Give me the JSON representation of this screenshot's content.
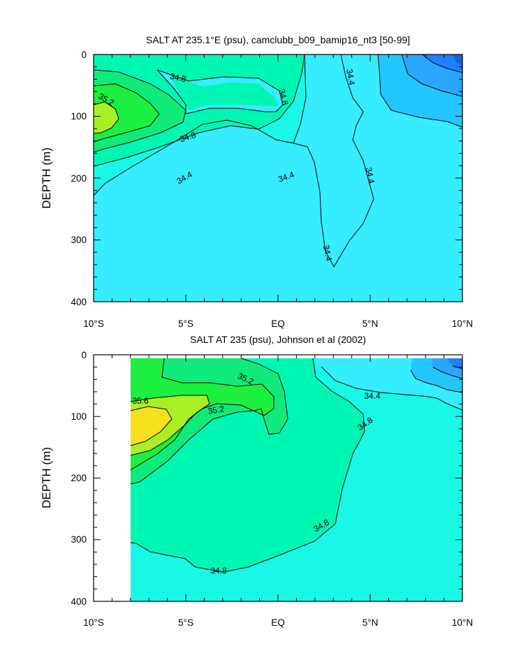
{
  "chart_data": [
    {
      "type": "contour",
      "title": "SALT AT 235.1°E (psu), camclubb_b09_bamip16_nt3 [50-99]",
      "ylabel": "DEPTH (m)",
      "xlim": [
        -10,
        10
      ],
      "ylim": [
        0,
        400
      ],
      "y_inverted": true,
      "x_ticks": [
        "10°S",
        "5°S",
        "EQ",
        "5°N",
        "10°N"
      ],
      "y_ticks": [
        "0",
        "100",
        "200",
        "300",
        "400"
      ],
      "contour_labels": [
        "34.8",
        "35.2",
        "34.8",
        "34.8",
        "34.4",
        "34.4",
        "34.4",
        "34.4",
        "34.4"
      ],
      "contour_levels": [
        34.0,
        34.2,
        34.4,
        34.6,
        34.8,
        35.0,
        35.2,
        35.4,
        35.6
      ],
      "colors": {
        "lt34.0": "#1f7fff",
        "34.0": "#2aa6ff",
        "34.2": "#22c7ff",
        "34.4": "#36ecff",
        "34.6": "#19f7e6",
        "34.8": "#00f7b3",
        "35.0": "#10ea7b",
        "35.2": "#1cef3f",
        "35.4": "#a9ef26",
        "gt35.6": "#f7e01d"
      }
    },
    {
      "type": "contour",
      "title": "SALT AT 235 (psu), Johnson et al (2002)",
      "ylabel": "DEPTH (m)",
      "xlim": [
        -10,
        10
      ],
      "ylim": [
        0,
        400
      ],
      "y_inverted": true,
      "data_x_start": -8,
      "x_ticks": [
        "10°S",
        "5°S",
        "EQ",
        "5°N",
        "10°N"
      ],
      "y_ticks": [
        "0",
        "100",
        "200",
        "300",
        "400"
      ],
      "contour_labels": [
        "35.6",
        "35.2",
        "35.2",
        "34.8",
        "34.8",
        "34.8",
        "34.4"
      ],
      "contour_levels": [
        34.0,
        34.2,
        34.4,
        34.6,
        34.8,
        35.0,
        35.2,
        35.4,
        35.6
      ],
      "colors": {
        "lt34.0": "#1f7fff",
        "34.0": "#2aa6ff",
        "34.2": "#22c7ff",
        "34.4": "#36ecff",
        "34.6": "#19f7e6",
        "34.8": "#00f7b3",
        "35.0": "#10ea7b",
        "35.2": "#1cef3f",
        "35.4": "#a9ef26",
        "gt35.6": "#f7e01d"
      }
    }
  ]
}
